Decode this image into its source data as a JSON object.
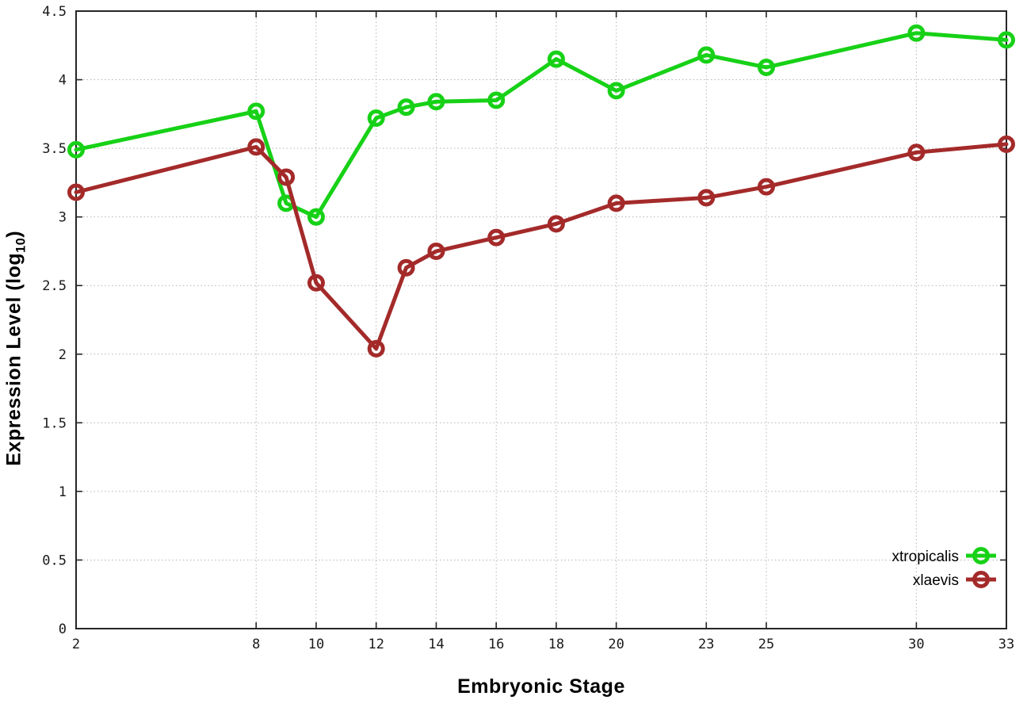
{
  "figure": {
    "xlabel": "Embryonic Stage",
    "ylabel_prefix": "Expression Level (log",
    "ylabel_sub": "10",
    "ylabel_suffix": ")"
  },
  "chart_data": {
    "type": "line",
    "title": "",
    "xlabel": "Embryonic Stage",
    "ylabel": "Expression Level (log10)",
    "x": [
      2,
      8,
      9,
      10,
      12,
      13,
      14,
      16,
      18,
      20,
      23,
      25,
      30,
      33
    ],
    "series": [
      {
        "name": "xtropicalis",
        "color": "#17d117",
        "values": [
          3.49,
          3.77,
          3.1,
          3.0,
          3.72,
          3.8,
          3.84,
          3.85,
          4.15,
          3.92,
          4.18,
          4.09,
          4.34,
          4.29
        ]
      },
      {
        "name": "xlaevis",
        "color": "#a42a2a",
        "values": [
          3.18,
          3.51,
          3.29,
          2.52,
          2.04,
          2.63,
          2.75,
          2.85,
          2.95,
          3.1,
          3.14,
          3.22,
          3.47,
          3.53
        ]
      }
    ],
    "xlim": [
      2,
      33
    ],
    "ylim": [
      0,
      4.5
    ],
    "xticks": [
      {
        "value": 2,
        "label": "2"
      },
      {
        "value": 8,
        "label": "8"
      },
      {
        "value": 10,
        "label": "10"
      },
      {
        "value": 12,
        "label": "12"
      },
      {
        "value": 14,
        "label": "14"
      },
      {
        "value": 16,
        "label": "16"
      },
      {
        "value": 18,
        "label": "18"
      },
      {
        "value": 20,
        "label": "20"
      },
      {
        "value": 23,
        "label": "23"
      },
      {
        "value": 25,
        "label": "25"
      },
      {
        "value": 30,
        "label": "30"
      },
      {
        "value": 33,
        "label": "33"
      }
    ],
    "yticks": [
      {
        "value": 0,
        "label": "0"
      },
      {
        "value": 0.5,
        "label": "0.5"
      },
      {
        "value": 1,
        "label": "1"
      },
      {
        "value": 1.5,
        "label": "1.5"
      },
      {
        "value": 2,
        "label": "2"
      },
      {
        "value": 2.5,
        "label": "2.5"
      },
      {
        "value": 3,
        "label": "3"
      },
      {
        "value": 3.5,
        "label": "3.5"
      },
      {
        "value": 4,
        "label": "4"
      },
      {
        "value": 4.5,
        "label": "4.5"
      }
    ],
    "grid": true,
    "legend_position": "bottom-right",
    "marker": "open-circle",
    "legend_entries": [
      "xtropicalis",
      "xlaevis"
    ]
  },
  "colors": {
    "background": "#ffffff",
    "border": "#262626",
    "grid": "#b4b4b4",
    "tick_text": "#1a1a1a",
    "series_green": "#17d117",
    "series_red": "#a42a2a"
  }
}
